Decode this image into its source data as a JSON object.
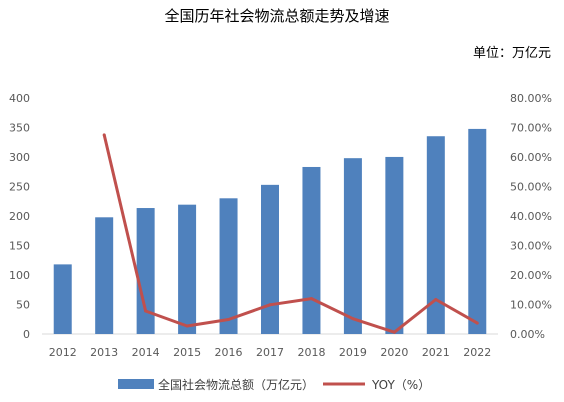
{
  "chart_data": {
    "type": "bar",
    "title": "全国历年社会物流总额走势及增速",
    "unit_label": "单位：万亿元",
    "categories": [
      "2012",
      "2013",
      "2014",
      "2015",
      "2016",
      "2017",
      "2018",
      "2019",
      "2020",
      "2021",
      "2022"
    ],
    "series": [
      {
        "name": "全国社会物流总额（万亿元）",
        "type": "bar",
        "axis": "left",
        "color": "#4f81bd",
        "values": [
          118,
          197.8,
          213.5,
          219.2,
          230,
          252.8,
          283.1,
          298,
          300.1,
          335.2,
          347.6
        ]
      },
      {
        "name": "YOY（%）",
        "type": "line",
        "axis": "right",
        "color": "#c0504d",
        "values": [
          null,
          0.675,
          0.078,
          0.027,
          0.049,
          0.099,
          0.12,
          0.052,
          0.006,
          0.117,
          0.037
        ]
      }
    ],
    "y_left": {
      "ylim": [
        0,
        400
      ],
      "ticks": [
        "0",
        "50",
        "100",
        "150",
        "200",
        "250",
        "300",
        "350",
        "400"
      ]
    },
    "y_right": {
      "ylim": [
        0,
        0.8
      ],
      "ticks": [
        "0.00%",
        "10.00%",
        "20.00%",
        "30.00%",
        "40.00%",
        "50.00%",
        "60.00%",
        "70.00%",
        "80.00%"
      ]
    },
    "grid": false,
    "legend_position": "bottom"
  }
}
